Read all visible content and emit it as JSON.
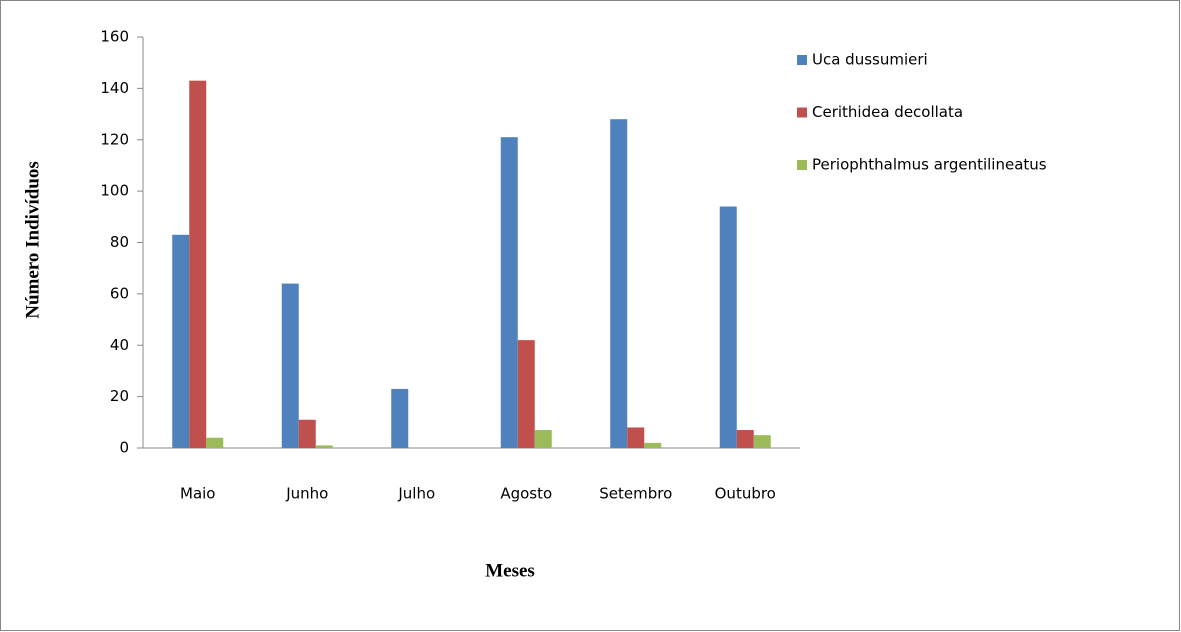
{
  "chart_data": {
    "type": "bar",
    "x_label": "Meses",
    "y_label": "Número Indivíduos",
    "categories": [
      "Maio",
      "Junho",
      "Julho",
      "Agosto",
      "Setembro",
      "Outubro"
    ],
    "series": [
      {
        "name": "Uca dussumieri",
        "color": "#4f81bd",
        "values": [
          83,
          64,
          23,
          121,
          128,
          94
        ]
      },
      {
        "name": "Cerithidea decollata",
        "color": "#c0504d",
        "values": [
          143,
          11,
          0,
          42,
          8,
          7
        ]
      },
      {
        "name": "Periophthalmus argentilineatus",
        "color": "#9bbb59",
        "values": [
          4,
          1,
          0,
          7,
          2,
          5
        ]
      }
    ],
    "ylim": [
      0,
      160
    ],
    "yticks": [
      0,
      20,
      40,
      60,
      80,
      100,
      120,
      140,
      160
    ],
    "legend": "right"
  }
}
